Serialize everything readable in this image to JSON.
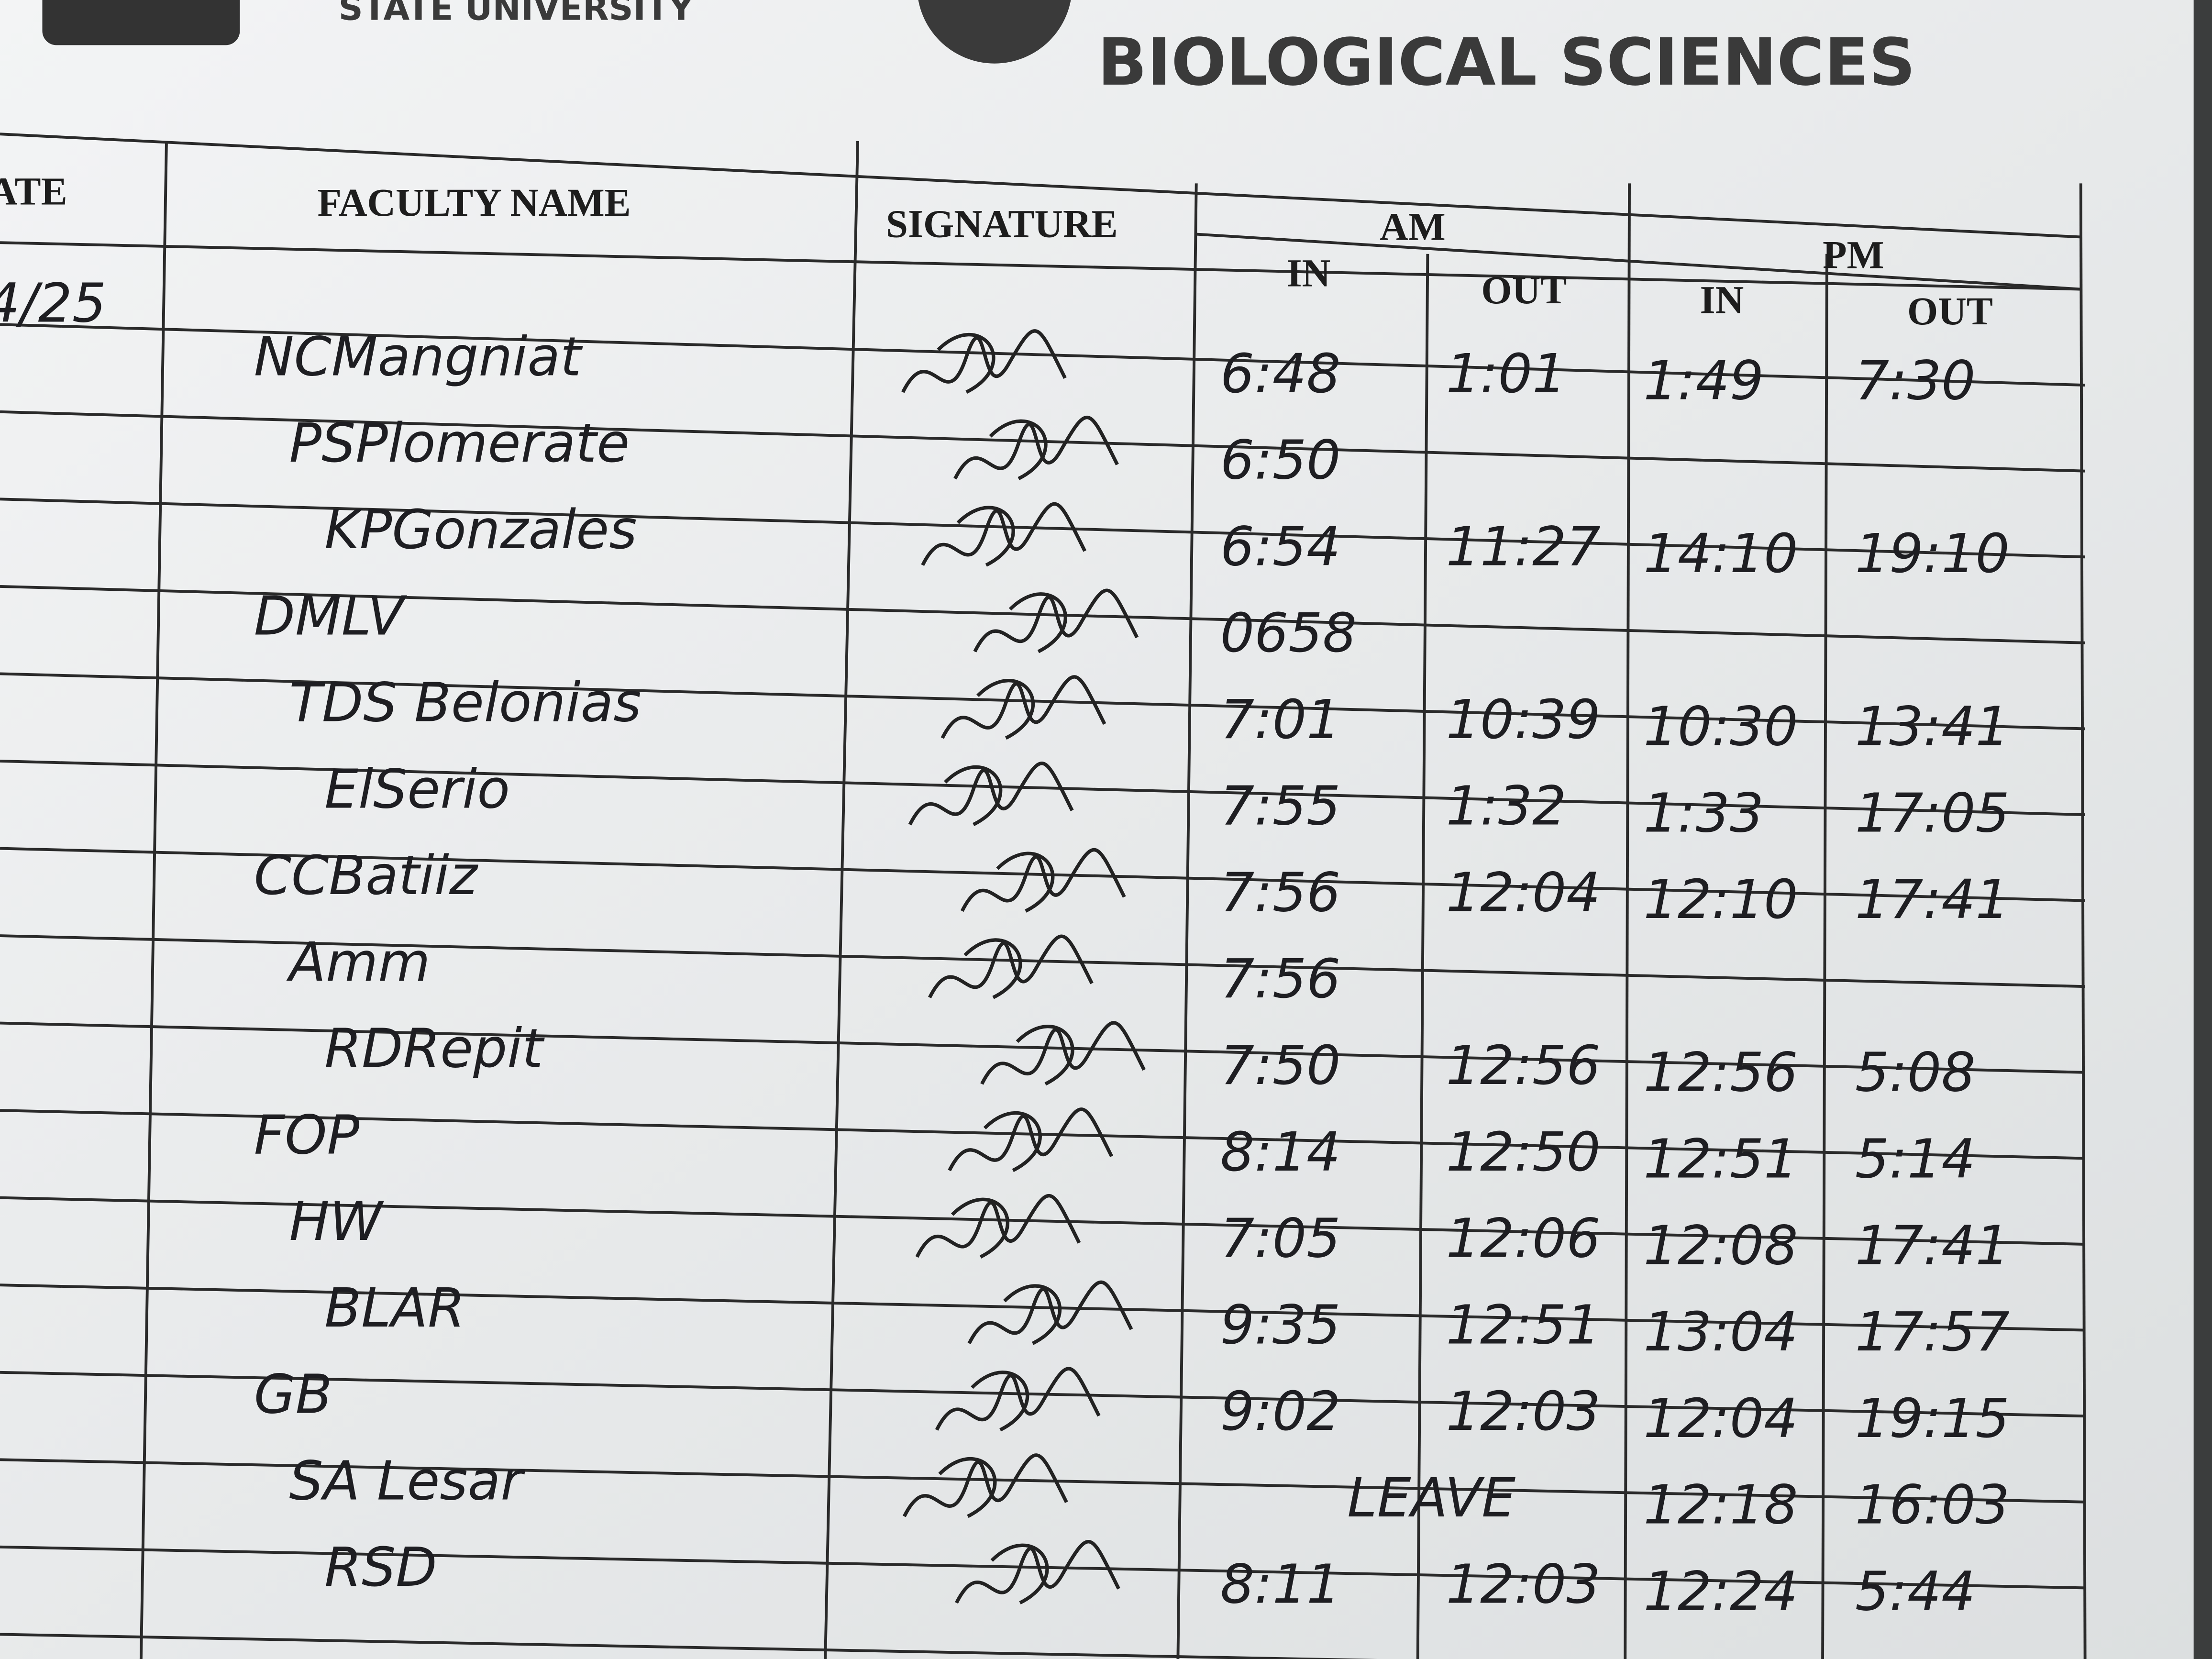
{
  "header": {
    "university": "STATE UNIVERSITY",
    "department": "BIOLOGICAL SCIENCES"
  },
  "table": {
    "columns": {
      "date": "DATE",
      "faculty_name": "FACULTY NAME",
      "signature": "SIGNATURE",
      "am": "AM",
      "pm": "PM",
      "in": "IN",
      "out": "OUT"
    },
    "date": "4/25",
    "rows": [
      {
        "name": "NCMangniat",
        "am_in": "6:48",
        "am_out": "1:01",
        "pm_in": "1:49",
        "pm_out": "7:30"
      },
      {
        "name": "PSPlomerate",
        "am_in": "6:50"
      },
      {
        "name": "KPGonzales",
        "am_in": "6:54",
        "am_out": "11:27",
        "pm_in": "14:10",
        "pm_out": "19:10"
      },
      {
        "name": "DMLV",
        "am_in": "0658"
      },
      {
        "name": "TDS Belonias",
        "am_in": "7:01",
        "am_out": "10:39",
        "pm_in": "10:30",
        "pm_out": "13:41"
      },
      {
        "name": "ElSerio",
        "am_in": "7:55",
        "am_out": "1:32",
        "pm_in": "1:33",
        "pm_out": "17:05"
      },
      {
        "name": "CCBatiiz",
        "am_in": "7:56",
        "am_out": "12:04",
        "pm_in": "12:10",
        "pm_out": "17:41"
      },
      {
        "name": "Amm",
        "am_in": "7:56"
      },
      {
        "name": "RDRepit",
        "am_in": "7:50",
        "am_out": "12:56",
        "pm_in": "12:56",
        "pm_out": "5:08"
      },
      {
        "name": "FOP",
        "am_in": "8:14",
        "am_out": "12:50",
        "pm_in": "12:51",
        "pm_out": "5:14"
      },
      {
        "name": "HW",
        "am_in": "7:05",
        "am_out": "12:06",
        "pm_in": "12:08",
        "pm_out": "17:41"
      },
      {
        "name": "BLAR",
        "am_in": "9:35",
        "am_out": "12:51",
        "pm_in": "13:04",
        "pm_out": "17:57"
      },
      {
        "name": "GB",
        "am_in": "9:02",
        "am_out": "12:03",
        "pm_in": "12:04",
        "pm_out": "19:15"
      },
      {
        "name": "SA Lesar",
        "am_note": "LEAVE",
        "pm_in": "12:18",
        "pm_out": "16:03"
      },
      {
        "name": "RSD",
        "am_in": "8:11",
        "am_out": "12:03",
        "pm_in": "12:24",
        "pm_out": "5:44"
      }
    ]
  }
}
